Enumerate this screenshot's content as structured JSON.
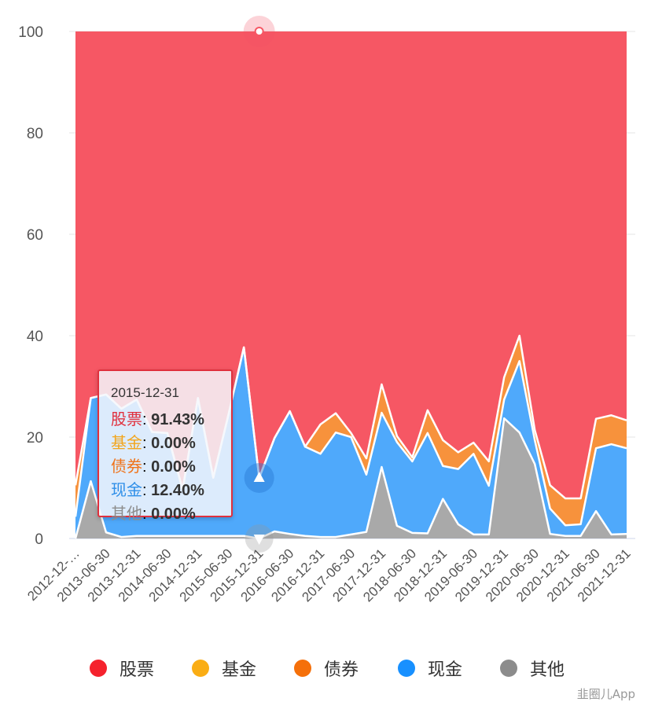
{
  "chart_data": {
    "type": "area",
    "stacking": "percent",
    "ylim": [
      0,
      100
    ],
    "yticks": [
      "0",
      "20",
      "40",
      "60",
      "80",
      "100"
    ],
    "grid": true,
    "legend_position": "bottom",
    "x": [
      "2012-12-31",
      "2013-03-31",
      "2013-06-30",
      "2013-09-30",
      "2013-12-31",
      "2014-03-31",
      "2014-06-30",
      "2014-09-30",
      "2014-12-31",
      "2015-03-31",
      "2015-06-30",
      "2015-09-30",
      "2015-12-31",
      "2016-03-31",
      "2016-06-30",
      "2016-09-30",
      "2016-12-31",
      "2017-03-31",
      "2017-06-30",
      "2017-09-30",
      "2017-12-31",
      "2018-03-31",
      "2018-06-30",
      "2018-09-30",
      "2018-12-31",
      "2019-03-31",
      "2019-06-30",
      "2019-09-30",
      "2019-12-31",
      "2020-03-31",
      "2020-06-30",
      "2020-09-30",
      "2020-12-31",
      "2021-03-31",
      "2021-06-30",
      "2021-09-30",
      "2021-12-31"
    ],
    "xtick_labels": [
      "2012-12-…",
      "2013-06-30",
      "2013-12-31",
      "2014-06-30",
      "2014-12-31",
      "2015-06-30",
      "2015-12-31",
      "2016-06-30",
      "2016-12-31",
      "2017-06-30",
      "2017-12-31",
      "2018-06-30",
      "2018-12-31",
      "2019-06-30",
      "2019-12-31",
      "2020-06-30",
      "2020-12-31",
      "2021-06-30",
      "2021-12-31"
    ],
    "series": [
      {
        "name": "其他",
        "color": "#8c8c8c",
        "fill": "#a9a9a9",
        "values": [
          0,
          11.3,
          1.2,
          0.3,
          0.5,
          0.5,
          0.5,
          0.5,
          0.5,
          0.5,
          0.5,
          0.5,
          0,
          1.4,
          0.9,
          0.5,
          0.3,
          0.3,
          0.8,
          1.3,
          14.1,
          2.5,
          1.1,
          1.0,
          7.8,
          2.8,
          0.8,
          0.8,
          23.7,
          20.9,
          14.7,
          0.9,
          0.5,
          0.5,
          5.4,
          0.8,
          0.9
        ]
      },
      {
        "name": "现金",
        "color": "#1890ff",
        "fill": "#4fa9fb",
        "values": [
          4.3,
          16.4,
          27.2,
          25.3,
          26.9,
          20.5,
          20.3,
          9.1,
          27.2,
          11.5,
          24.0,
          37.2,
          12.4,
          18.4,
          24.2,
          17.6,
          16.4,
          20.6,
          19.2,
          11.3,
          10.7,
          16.5,
          14.1,
          19.8,
          6.5,
          10.9,
          15.9,
          9.6,
          3.7,
          14.1,
          4.7,
          5.0,
          2.1,
          2.3,
          12.4,
          17.8,
          16.9
        ]
      },
      {
        "name": "基金",
        "color": "#faad14",
        "fill": "#f9bd4a",
        "values": [
          0,
          0,
          0,
          0,
          0,
          0,
          0,
          0,
          0,
          0,
          0,
          0,
          0,
          0,
          0,
          0,
          0,
          0,
          0,
          0,
          0,
          0,
          0,
          0,
          0,
          0,
          0,
          0,
          0,
          0,
          0,
          0,
          0,
          0,
          0,
          0,
          0
        ]
      },
      {
        "name": "债券",
        "color": "#f5700a",
        "fill": "#f7923c",
        "values": [
          6.2,
          0,
          0,
          0,
          0,
          0,
          0,
          0,
          0,
          0,
          0,
          0,
          0,
          0,
          0,
          0,
          5.8,
          3.8,
          0.8,
          3.2,
          5.6,
          1.2,
          0.8,
          4.5,
          5.1,
          3.3,
          2.2,
          4.8,
          4.4,
          5.0,
          2.0,
          4.6,
          5.3,
          5.1,
          5.8,
          5.7,
          5.5
        ]
      },
      {
        "name": "股票",
        "color": "#f5222d",
        "fill": "#f65764",
        "values": [
          89.5,
          72.3,
          71.6,
          74.4,
          72.6,
          79,
          79.2,
          90.4,
          72.3,
          88,
          75.5,
          62.3,
          91.43,
          80.2,
          74.9,
          81.9,
          77.5,
          75.3,
          79.2,
          84.2,
          69.6,
          79.8,
          84,
          74.7,
          80.6,
          83,
          81.1,
          84.8,
          68.2,
          60,
          78.6,
          89.5,
          92.1,
          92.1,
          76.4,
          75.7,
          76.7
        ]
      }
    ]
  },
  "legend": [
    {
      "label": "股票",
      "color": "#f5222d"
    },
    {
      "label": "基金",
      "color": "#faad14"
    },
    {
      "label": "债券",
      "color": "#f5700a"
    },
    {
      "label": "现金",
      "color": "#1890ff"
    },
    {
      "label": "其他",
      "color": "#8c8c8c"
    }
  ],
  "tooltip": {
    "date": "2015-12-31",
    "rows": [
      {
        "name": "股票",
        "value": "91.43%",
        "color": "#e0303d"
      },
      {
        "name": "基金",
        "value": "0.00%",
        "color": "#f2a51c"
      },
      {
        "name": "债券",
        "value": "0.00%",
        "color": "#f0731a"
      },
      {
        "name": "现金",
        "value": "12.40%",
        "color": "#2d8ee8"
      },
      {
        "name": "其他",
        "value": "0.00%",
        "color": "#8c8c8c"
      }
    ],
    "sep": ":"
  },
  "watermark": "韭圈儿App"
}
